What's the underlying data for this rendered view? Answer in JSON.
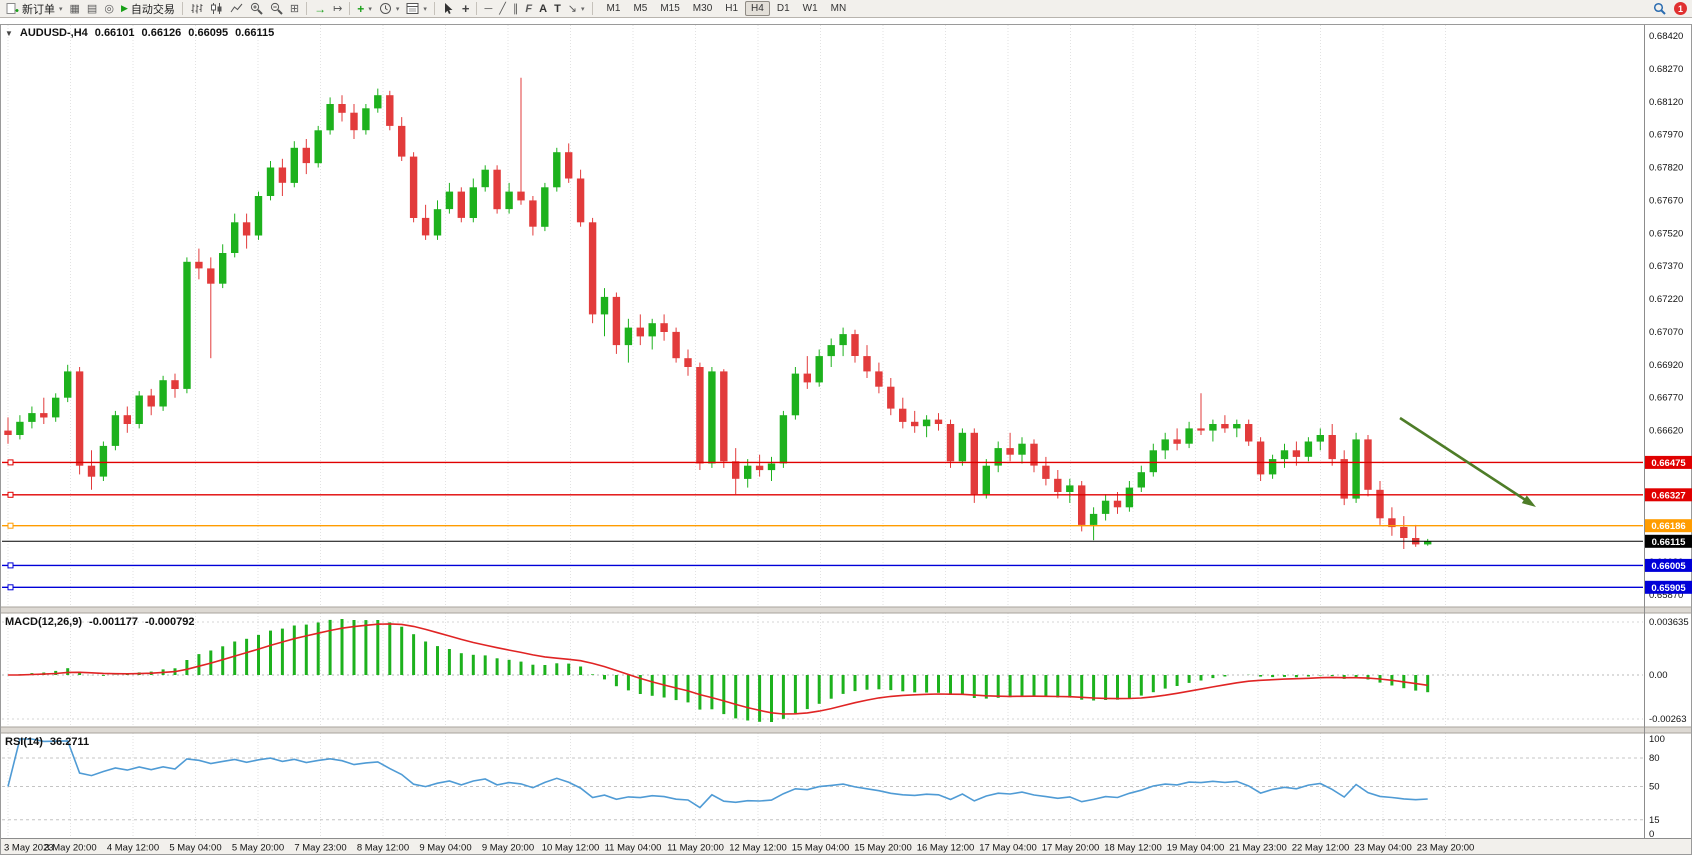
{
  "colors": {
    "bull": "#1db11d",
    "bear": "#e23b3b",
    "macd_histogram": "#1db11d",
    "macd_signal": "#e02424",
    "rsi_line": "#4f9bd5",
    "grid": "#e2e2e2",
    "arrow": "#4e7d28",
    "level_red": "#e00000",
    "level_orange": "#ff9c00",
    "level_blue": "#0000d8",
    "bid_black": "#000000"
  },
  "toolbar": {
    "new_order_label": "新订单",
    "autotrading_label": "自动交易",
    "timeframes": [
      "M1",
      "M5",
      "M15",
      "M30",
      "H1",
      "H4",
      "D1",
      "W1",
      "MN"
    ],
    "active_timeframe": "H4",
    "notification_badge": "1"
  },
  "icons": {
    "collapse_triangle": "▼",
    "dropdown": "▾",
    "chart_window": "▦",
    "profiles": "▤",
    "alerts": "◎",
    "autotrading_play": "▶",
    "tile_windows": "⊞",
    "autoscroll": "→",
    "chart_shift": "↦",
    "indicators_add": "+",
    "crosshair": "+",
    "horizontal_line": "─",
    "trendline": "╱",
    "channel": "∥",
    "fibonacci": "F",
    "text_a": "A",
    "text_label": "T",
    "arrows_tool": "↘"
  },
  "chart_data": {
    "type": "candlestick",
    "symbol": "AUDUSD",
    "timeframe": "H4",
    "header": {
      "symbol_period": "AUDUSD-,H4",
      "open": "0.66101",
      "high": "0.66126",
      "low": "0.66095",
      "close": "0.66115"
    },
    "price_axis_labels": [
      "0.68420",
      "0.68270",
      "0.68120",
      "0.67970",
      "0.67820",
      "0.67670",
      "0.67520",
      "0.67370",
      "0.67220",
      "0.67070",
      "0.66920",
      "0.66770",
      "0.66620",
      "0.66470",
      "0.66320",
      "0.66170",
      "0.66020",
      "0.65870"
    ],
    "time_labels": [
      "3 May 2023",
      "3 May 20:00",
      "4 May 12:00",
      "5 May 04:00",
      "5 May 20:00",
      "7 May 23:00",
      "8 May 12:00",
      "9 May 04:00",
      "9 May 20:00",
      "10 May 12:00",
      "11 May 04:00",
      "11 May 20:00",
      "12 May 12:00",
      "15 May 04:00",
      "15 May 20:00",
      "16 May 12:00",
      "17 May 04:00",
      "17 May 20:00",
      "18 May 12:00",
      "19 May 04:00",
      "21 May 23:00",
      "22 May 12:00",
      "23 May 04:00",
      "23 May 20:00"
    ],
    "candles": [
      [
        0.6662,
        0.6668,
        0.6656,
        0.666
      ],
      [
        0.666,
        0.6669,
        0.6658,
        0.6666
      ],
      [
        0.6666,
        0.6673,
        0.6663,
        0.667
      ],
      [
        0.667,
        0.6677,
        0.6665,
        0.6668
      ],
      [
        0.6668,
        0.6679,
        0.6666,
        0.6677
      ],
      [
        0.6677,
        0.6692,
        0.6675,
        0.6689
      ],
      [
        0.6689,
        0.6691,
        0.6642,
        0.6646
      ],
      [
        0.6646,
        0.6653,
        0.6635,
        0.6641
      ],
      [
        0.6641,
        0.6657,
        0.6639,
        0.6655
      ],
      [
        0.6655,
        0.6671,
        0.6653,
        0.6669
      ],
      [
        0.6669,
        0.6673,
        0.6661,
        0.6665
      ],
      [
        0.6665,
        0.668,
        0.6663,
        0.6678
      ],
      [
        0.6678,
        0.6681,
        0.6669,
        0.6673
      ],
      [
        0.6673,
        0.6687,
        0.6671,
        0.6685
      ],
      [
        0.6685,
        0.6688,
        0.6677,
        0.6681
      ],
      [
        0.6681,
        0.6741,
        0.6679,
        0.6739
      ],
      [
        0.6739,
        0.6745,
        0.6731,
        0.6736
      ],
      [
        0.6736,
        0.6741,
        0.6695,
        0.6729
      ],
      [
        0.6729,
        0.6747,
        0.6727,
        0.6743
      ],
      [
        0.6743,
        0.6761,
        0.6741,
        0.6757
      ],
      [
        0.6757,
        0.6761,
        0.6745,
        0.6751
      ],
      [
        0.6751,
        0.6771,
        0.6749,
        0.6769
      ],
      [
        0.6769,
        0.6785,
        0.6767,
        0.6782
      ],
      [
        0.6782,
        0.6786,
        0.6769,
        0.6775
      ],
      [
        0.6775,
        0.6794,
        0.6773,
        0.6791
      ],
      [
        0.6791,
        0.6795,
        0.6779,
        0.6784
      ],
      [
        0.6784,
        0.6801,
        0.6782,
        0.6799
      ],
      [
        0.6799,
        0.6814,
        0.6797,
        0.6811
      ],
      [
        0.6811,
        0.6815,
        0.6803,
        0.6807
      ],
      [
        0.6807,
        0.6811,
        0.6795,
        0.6799
      ],
      [
        0.6799,
        0.6811,
        0.6797,
        0.6809
      ],
      [
        0.6809,
        0.6818,
        0.6807,
        0.6815
      ],
      [
        0.6815,
        0.6817,
        0.6799,
        0.6801
      ],
      [
        0.6801,
        0.6805,
        0.6785,
        0.6787
      ],
      [
        0.6787,
        0.6789,
        0.6757,
        0.6759
      ],
      [
        0.6759,
        0.6765,
        0.6749,
        0.6751
      ],
      [
        0.6751,
        0.6767,
        0.6749,
        0.6763
      ],
      [
        0.6763,
        0.6775,
        0.6761,
        0.6771
      ],
      [
        0.6771,
        0.6773,
        0.6757,
        0.6759
      ],
      [
        0.6759,
        0.6777,
        0.6757,
        0.6773
      ],
      [
        0.6773,
        0.6783,
        0.6771,
        0.6781
      ],
      [
        0.6781,
        0.6783,
        0.6761,
        0.6763
      ],
      [
        0.6763,
        0.6775,
        0.6761,
        0.6771
      ],
      [
        0.6771,
        0.6823,
        0.6765,
        0.6767
      ],
      [
        0.6767,
        0.6769,
        0.6751,
        0.6755
      ],
      [
        0.6755,
        0.6775,
        0.6753,
        0.6773
      ],
      [
        0.6773,
        0.6791,
        0.6771,
        0.6789
      ],
      [
        0.6789,
        0.6793,
        0.6775,
        0.6777
      ],
      [
        0.6777,
        0.6781,
        0.6755,
        0.6757
      ],
      [
        0.6757,
        0.6759,
        0.6711,
        0.6715
      ],
      [
        0.6715,
        0.6727,
        0.6705,
        0.6723
      ],
      [
        0.6723,
        0.6725,
        0.6697,
        0.6701
      ],
      [
        0.6701,
        0.6713,
        0.6693,
        0.6709
      ],
      [
        0.6709,
        0.6715,
        0.6701,
        0.6705
      ],
      [
        0.6705,
        0.6713,
        0.6699,
        0.6711
      ],
      [
        0.6711,
        0.6715,
        0.6703,
        0.6707
      ],
      [
        0.6707,
        0.6709,
        0.6693,
        0.6695
      ],
      [
        0.6695,
        0.6699,
        0.6687,
        0.6691
      ],
      [
        0.6691,
        0.6693,
        0.6644,
        0.6647
      ],
      [
        0.6647,
        0.6691,
        0.6645,
        0.6689
      ],
      [
        0.6689,
        0.669,
        0.6645,
        0.6648
      ],
      [
        0.6648,
        0.6654,
        0.6633,
        0.664
      ],
      [
        0.664,
        0.6649,
        0.6636,
        0.6646
      ],
      [
        0.6646,
        0.6651,
        0.6641,
        0.6644
      ],
      [
        0.6644,
        0.665,
        0.6639,
        0.6647
      ],
      [
        0.6647,
        0.6671,
        0.6645,
        0.6669
      ],
      [
        0.6669,
        0.6691,
        0.6667,
        0.6688
      ],
      [
        0.6688,
        0.6696,
        0.6681,
        0.6684
      ],
      [
        0.6684,
        0.6699,
        0.6682,
        0.6696
      ],
      [
        0.6696,
        0.6704,
        0.6691,
        0.6701
      ],
      [
        0.6701,
        0.6709,
        0.6696,
        0.6706
      ],
      [
        0.6706,
        0.6708,
        0.6693,
        0.6696
      ],
      [
        0.6696,
        0.6701,
        0.6686,
        0.6689
      ],
      [
        0.6689,
        0.6693,
        0.6679,
        0.6682
      ],
      [
        0.6682,
        0.6686,
        0.6669,
        0.6672
      ],
      [
        0.6672,
        0.6677,
        0.6663,
        0.6666
      ],
      [
        0.6666,
        0.6671,
        0.6661,
        0.6664
      ],
      [
        0.6664,
        0.6669,
        0.6659,
        0.6667
      ],
      [
        0.6667,
        0.667,
        0.6662,
        0.6665
      ],
      [
        0.6665,
        0.6667,
        0.6645,
        0.6648
      ],
      [
        0.6648,
        0.6663,
        0.6646,
        0.6661
      ],
      [
        0.6661,
        0.6663,
        0.6629,
        0.6633
      ],
      [
        0.6633,
        0.6649,
        0.6631,
        0.6646
      ],
      [
        0.6646,
        0.6657,
        0.6643,
        0.6654
      ],
      [
        0.6654,
        0.6661,
        0.6648,
        0.6651
      ],
      [
        0.6651,
        0.6659,
        0.6647,
        0.6656
      ],
      [
        0.6656,
        0.6658,
        0.6643,
        0.6646
      ],
      [
        0.6646,
        0.665,
        0.6637,
        0.664
      ],
      [
        0.664,
        0.6644,
        0.6631,
        0.6634
      ],
      [
        0.6634,
        0.664,
        0.6629,
        0.6637
      ],
      [
        0.6637,
        0.6639,
        0.6616,
        0.6619
      ],
      [
        0.6619,
        0.6627,
        0.6612,
        0.6624
      ],
      [
        0.6624,
        0.6633,
        0.6621,
        0.663
      ],
      [
        0.663,
        0.6634,
        0.6624,
        0.6627
      ],
      [
        0.6627,
        0.6639,
        0.6625,
        0.6636
      ],
      [
        0.6636,
        0.6646,
        0.6634,
        0.6643
      ],
      [
        0.6643,
        0.6656,
        0.6641,
        0.6653
      ],
      [
        0.6653,
        0.6661,
        0.6649,
        0.6658
      ],
      [
        0.6658,
        0.6663,
        0.6653,
        0.6656
      ],
      [
        0.6656,
        0.6666,
        0.6654,
        0.6663
      ],
      [
        0.6663,
        0.6679,
        0.666,
        0.6662
      ],
      [
        0.6662,
        0.6667,
        0.6657,
        0.6665
      ],
      [
        0.6665,
        0.6669,
        0.6661,
        0.6663
      ],
      [
        0.6663,
        0.6667,
        0.6659,
        0.6665
      ],
      [
        0.6665,
        0.6667,
        0.6655,
        0.6657
      ],
      [
        0.6657,
        0.6659,
        0.6639,
        0.6642
      ],
      [
        0.6642,
        0.6651,
        0.664,
        0.6649
      ],
      [
        0.6649,
        0.6656,
        0.6645,
        0.6653
      ],
      [
        0.6653,
        0.6657,
        0.6646,
        0.665
      ],
      [
        0.665,
        0.6659,
        0.6648,
        0.6657
      ],
      [
        0.6657,
        0.6663,
        0.6653,
        0.666
      ],
      [
        0.666,
        0.6665,
        0.6646,
        0.6649
      ],
      [
        0.6649,
        0.6653,
        0.6628,
        0.6631
      ],
      [
        0.6631,
        0.6661,
        0.6629,
        0.6658
      ],
      [
        0.6658,
        0.666,
        0.6632,
        0.6635
      ],
      [
        0.6635,
        0.6639,
        0.6619,
        0.6622
      ],
      [
        0.6622,
        0.6627,
        0.6614,
        0.6618
      ],
      [
        0.6618,
        0.6623,
        0.6608,
        0.6613
      ],
      [
        0.6613,
        0.6619,
        0.6609,
        0.66101
      ],
      [
        0.66101,
        0.66126,
        0.66095,
        0.66115
      ]
    ],
    "levels": [
      {
        "price": 0.66475,
        "label": "0.66475",
        "color": "#e00000"
      },
      {
        "price": 0.66327,
        "label": "0.66327",
        "color": "#e00000"
      },
      {
        "price": 0.66186,
        "label": "0.66186",
        "color": "#ff9c00"
      },
      {
        "price": 0.66115,
        "label": "0.66115",
        "color": "#000000",
        "is_bid": true
      },
      {
        "price": 0.66005,
        "label": "0.66005",
        "color": "#0000d8"
      },
      {
        "price": 0.65905,
        "label": "0.65905",
        "color": "#0000d8"
      }
    ],
    "macd": {
      "label": "MACD(12,26,9)",
      "value_main": "-0.001177",
      "value_signal": "-0.000792",
      "fast": 12,
      "slow": 26,
      "signal_period": 9,
      "axis_labels": [
        "0.003635",
        "0.00",
        "-0.00263"
      ]
    },
    "rsi": {
      "label": "RSI(14)",
      "value": "36.2711",
      "period": 14,
      "axis_labels": [
        "100",
        "80",
        "50",
        "15",
        "0"
      ],
      "axis_values": [
        100,
        80,
        50,
        15,
        0
      ],
      "dashed_levels": [
        80,
        50,
        15
      ]
    }
  }
}
